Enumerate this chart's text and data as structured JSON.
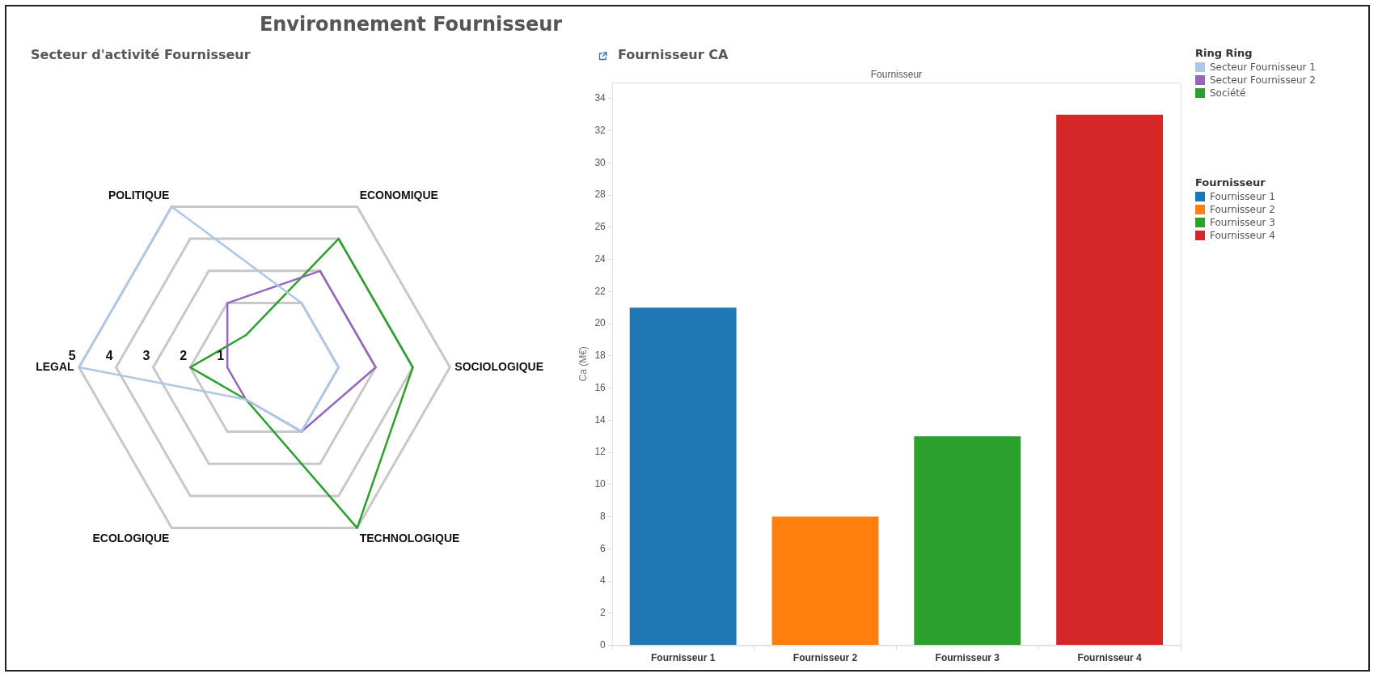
{
  "chart_data": [
    {
      "type": "radar",
      "title": "Environnement Fournisseur",
      "subtitle": "Secteur d'activité Fournisseur",
      "categories": [
        "POLITIQUE",
        "ECONOMIQUE",
        "SOCIOLOGIQUE",
        "TECHNOLOGIQUE",
        "ECOLOGIQUE",
        "LEGAL"
      ],
      "series": [
        {
          "name": "Secteur Fournisseur 1",
          "color": "#aec7e8",
          "values": [
            5,
            2,
            2,
            2,
            1,
            5
          ]
        },
        {
          "name": "Secteur Fournisseur 2",
          "color": "#9467bd",
          "values": [
            2,
            3,
            3,
            2,
            1,
            1
          ]
        },
        {
          "name": "Société",
          "color": "#2ca02c",
          "values": [
            1,
            4,
            4,
            5,
            1,
            2
          ]
        }
      ],
      "ylim": [
        0,
        5
      ],
      "yticks": [
        1,
        2,
        3,
        4,
        5
      ],
      "grid": true,
      "legend": "right",
      "legend_title": "Ring Ring",
      "marker": "none"
    },
    {
      "type": "bar",
      "title": "Fournisseur CA",
      "xlabel": "Fournisseur",
      "ylabel": "Ca (M€)",
      "categories": [
        "Fournisseur 1",
        "Fournisseur 2",
        "Fournisseur 3",
        "Fournisseur 4"
      ],
      "series": [
        {
          "name": "Fournisseur 1",
          "color": "#1f77b4",
          "values": [
            21,
            null,
            null,
            null
          ]
        },
        {
          "name": "Fournisseur 2",
          "color": "#ff7f0e",
          "values": [
            null,
            8,
            null,
            null
          ]
        },
        {
          "name": "Fournisseur 3",
          "color": "#2ca02c",
          "values": [
            null,
            null,
            13,
            null
          ]
        },
        {
          "name": "Fournisseur 4",
          "color": "#d62728",
          "values": [
            null,
            null,
            null,
            33
          ]
        }
      ],
      "ylim": [
        0,
        35
      ],
      "yticks": [
        0,
        2,
        4,
        6,
        8,
        10,
        12,
        14,
        16,
        18,
        20,
        22,
        24,
        26,
        28,
        30,
        32,
        34
      ],
      "grid": false,
      "legend": "right",
      "legend_title": "Fournisseur"
    }
  ]
}
